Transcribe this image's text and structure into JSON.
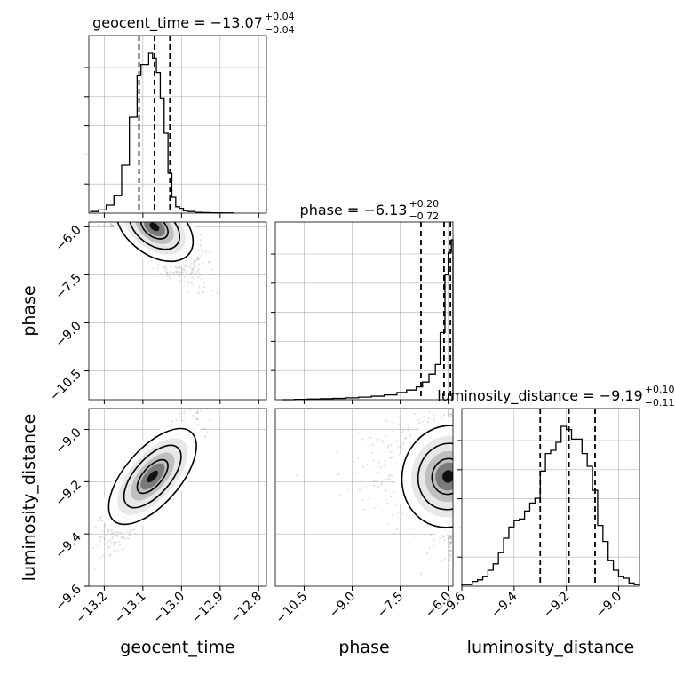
{
  "chart_data": {
    "type": "corner",
    "parameters": [
      {
        "name": "geocent_time",
        "axis_label": "geocent_time",
        "title_main": "geocent_time = −13.07",
        "title_sup": "+0.04",
        "title_sub": "−0.04",
        "median": -13.07,
        "lower": -13.11,
        "upper": -13.03,
        "range": [
          -13.24,
          -12.78
        ],
        "ticks": [
          -13.2,
          -13.1,
          -13.0,
          -12.9,
          -12.8
        ],
        "tick_labels": [
          "−13.2",
          "−13.1",
          "−13.0",
          "−12.9",
          "−12.8"
        ],
        "hist": {
          "bins": [
            -13.235,
            -13.215,
            -13.195,
            -13.175,
            -13.155,
            -13.135,
            -13.115,
            -13.105,
            -13.095,
            -13.085,
            -13.075,
            -13.065,
            -13.055,
            -13.045,
            -13.035,
            -13.025,
            -13.015,
            -13.005,
            -12.995,
            -12.985,
            -12.965,
            -12.945,
            -12.925,
            -12.895,
            -12.865
          ],
          "counts": [
            0.01,
            0.02,
            0.05,
            0.11,
            0.3,
            0.6,
            0.86,
            0.93,
            0.93,
            1.0,
            0.97,
            0.88,
            0.72,
            0.5,
            0.25,
            0.1,
            0.04,
            0.03,
            0.015,
            0.01,
            0.005,
            0.003,
            0.002,
            0.001
          ]
        }
      },
      {
        "name": "phase",
        "axis_label": "phase",
        "title_main": "phase = −6.13",
        "title_sup": "+0.20",
        "title_sub": "−0.72",
        "median": -6.13,
        "lower": -6.85,
        "upper": -5.93,
        "range": [
          -11.4,
          -5.85
        ],
        "ticks": [
          -10.5,
          -9.0,
          -7.5,
          -6.0
        ],
        "tick_labels": [
          "−10.5",
          "−9.0",
          "−7.5",
          "−6.0"
        ],
        "hist": {
          "bins": [
            -11.2,
            -10.8,
            -10.4,
            -10.0,
            -9.6,
            -9.2,
            -8.8,
            -8.4,
            -8.0,
            -7.6,
            -7.3,
            -7.0,
            -6.8,
            -6.6,
            -6.4,
            -6.25,
            -6.1,
            -6.0,
            -5.9,
            -5.85
          ],
          "counts": [
            0.0,
            0.002,
            0.004,
            0.006,
            0.008,
            0.012,
            0.016,
            0.022,
            0.03,
            0.045,
            0.06,
            0.08,
            0.11,
            0.16,
            0.22,
            0.42,
            0.78,
            0.92,
            1.0
          ]
        }
      },
      {
        "name": "luminosity_distance",
        "axis_label": "luminosity_distance",
        "title_main": "luminosity_distance = −9.19",
        "title_sup": "+0.10",
        "title_sub": "−0.11",
        "median": -9.19,
        "lower": -9.3,
        "upper": -9.09,
        "range": [
          -9.6,
          -8.92
        ],
        "ticks": [
          -9.6,
          -9.4,
          -9.2,
          -9.0
        ],
        "tick_labels": [
          "−9.6",
          "−9.4",
          "−9.2",
          "−9.0"
        ],
        "hist": {
          "bins": [
            -9.6,
            -9.58,
            -9.56,
            -9.54,
            -9.52,
            -9.5,
            -9.48,
            -9.46,
            -9.44,
            -9.42,
            -9.4,
            -9.38,
            -9.36,
            -9.34,
            -9.32,
            -9.3,
            -9.28,
            -9.26,
            -9.24,
            -9.22,
            -9.2,
            -9.18,
            -9.16,
            -9.14,
            -9.12,
            -9.1,
            -9.08,
            -9.06,
            -9.04,
            -9.02,
            -9.0,
            -8.98,
            -8.96,
            -8.94,
            -8.92
          ],
          "counts": [
            0.01,
            0.01,
            0.03,
            0.04,
            0.06,
            0.1,
            0.14,
            0.21,
            0.3,
            0.37,
            0.41,
            0.42,
            0.47,
            0.52,
            0.55,
            0.72,
            0.83,
            0.85,
            0.9,
            1.0,
            0.98,
            0.92,
            0.92,
            0.83,
            0.75,
            0.6,
            0.38,
            0.28,
            0.16,
            0.1,
            0.06,
            0.05,
            0.02,
            0.01
          ]
        }
      }
    ],
    "pairs": [
      {
        "x": "geocent_time",
        "y": "phase",
        "mean": [
          -13.06,
          -6.1
        ],
        "sigma": [
          0.045,
          0.6
        ],
        "correlation": -0.7,
        "peak": [
          -13.07,
          -6.0
        ],
        "tail": "toward larger geocent_time and more negative phase"
      },
      {
        "x": "geocent_time",
        "y": "luminosity_distance",
        "mean": [
          -13.075,
          -9.19
        ],
        "sigma": [
          0.05,
          0.1
        ],
        "correlation": 0.85,
        "peak": [
          -13.075,
          -9.18
        ]
      },
      {
        "x": "phase",
        "y": "luminosity_distance",
        "mean": [
          -6.0,
          -9.19
        ],
        "sigma": [
          0.7,
          0.1
        ],
        "correlation": -0.2,
        "peak": [
          -6.0,
          -9.18
        ]
      }
    ],
    "colors": {
      "line": "#000000",
      "grid": "#b0b0b0",
      "samples": "#808080"
    },
    "grid": true,
    "quantile_line_style": "dashed"
  }
}
